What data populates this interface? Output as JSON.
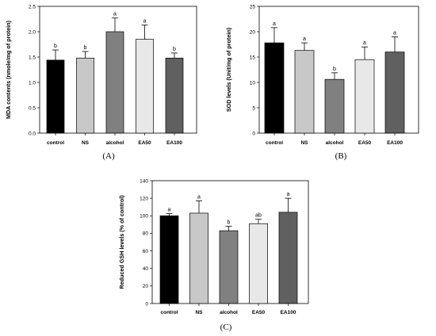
{
  "chart_data": [
    {
      "panel_label": "(A)",
      "type": "bar",
      "ylabel": "MDA contents (nmole/mg of protein)",
      "ylim": [
        0,
        2.5
      ],
      "yticks": [
        0.0,
        0.5,
        1.0,
        1.5,
        2.0,
        2.5
      ],
      "ytick_labels": [
        "0.0",
        "0.5",
        "1.0",
        "1.5",
        "2.0",
        "2.5"
      ],
      "categories": [
        "control",
        "NS",
        "alcohol",
        "EA50",
        "EA100"
      ],
      "values": [
        1.44,
        1.48,
        2.0,
        1.85,
        1.48
      ],
      "errors": [
        0.2,
        0.13,
        0.27,
        0.28,
        0.1
      ],
      "significance": [
        "b",
        "b",
        "a",
        "a",
        "b"
      ],
      "colors": [
        "#000000",
        "#c8c8c8",
        "#808080",
        "#e8e8e8",
        "#606060"
      ]
    },
    {
      "panel_label": "(B)",
      "type": "bar",
      "ylabel": "SOD levels (Unit/mg of protein)",
      "ylim": [
        0,
        25
      ],
      "yticks": [
        0,
        5,
        10,
        15,
        20,
        25
      ],
      "ytick_labels": [
        "0",
        "5",
        "10",
        "15",
        "20",
        "25"
      ],
      "categories": [
        "control",
        "NS",
        "alcohol",
        "EA50",
        "EA100"
      ],
      "values": [
        17.8,
        16.3,
        10.6,
        14.5,
        16.0
      ],
      "errors": [
        3.0,
        1.5,
        1.3,
        2.5,
        3.0
      ],
      "significance": [
        "a",
        "a",
        "b",
        "a",
        "a"
      ],
      "colors": [
        "#000000",
        "#c8c8c8",
        "#808080",
        "#e8e8e8",
        "#606060"
      ]
    },
    {
      "panel_label": "(C)",
      "type": "bar",
      "ylabel": "Reduced GSH levels (% of control)",
      "ylim": [
        0,
        140
      ],
      "yticks": [
        0,
        20,
        40,
        60,
        80,
        100,
        120,
        140
      ],
      "ytick_labels": [
        "0",
        "20",
        "40",
        "60",
        "80",
        "100",
        "120",
        "140"
      ],
      "categories": [
        "control",
        "NS",
        "alcohol",
        "EA50",
        "EA100"
      ],
      "values": [
        100,
        103,
        83,
        91,
        104
      ],
      "errors": [
        2.5,
        14,
        5,
        5,
        16
      ],
      "significance": [
        "a",
        "a",
        "b",
        "ab",
        "a"
      ],
      "colors": [
        "#000000",
        "#c8c8c8",
        "#808080",
        "#e8e8e8",
        "#606060"
      ]
    }
  ]
}
